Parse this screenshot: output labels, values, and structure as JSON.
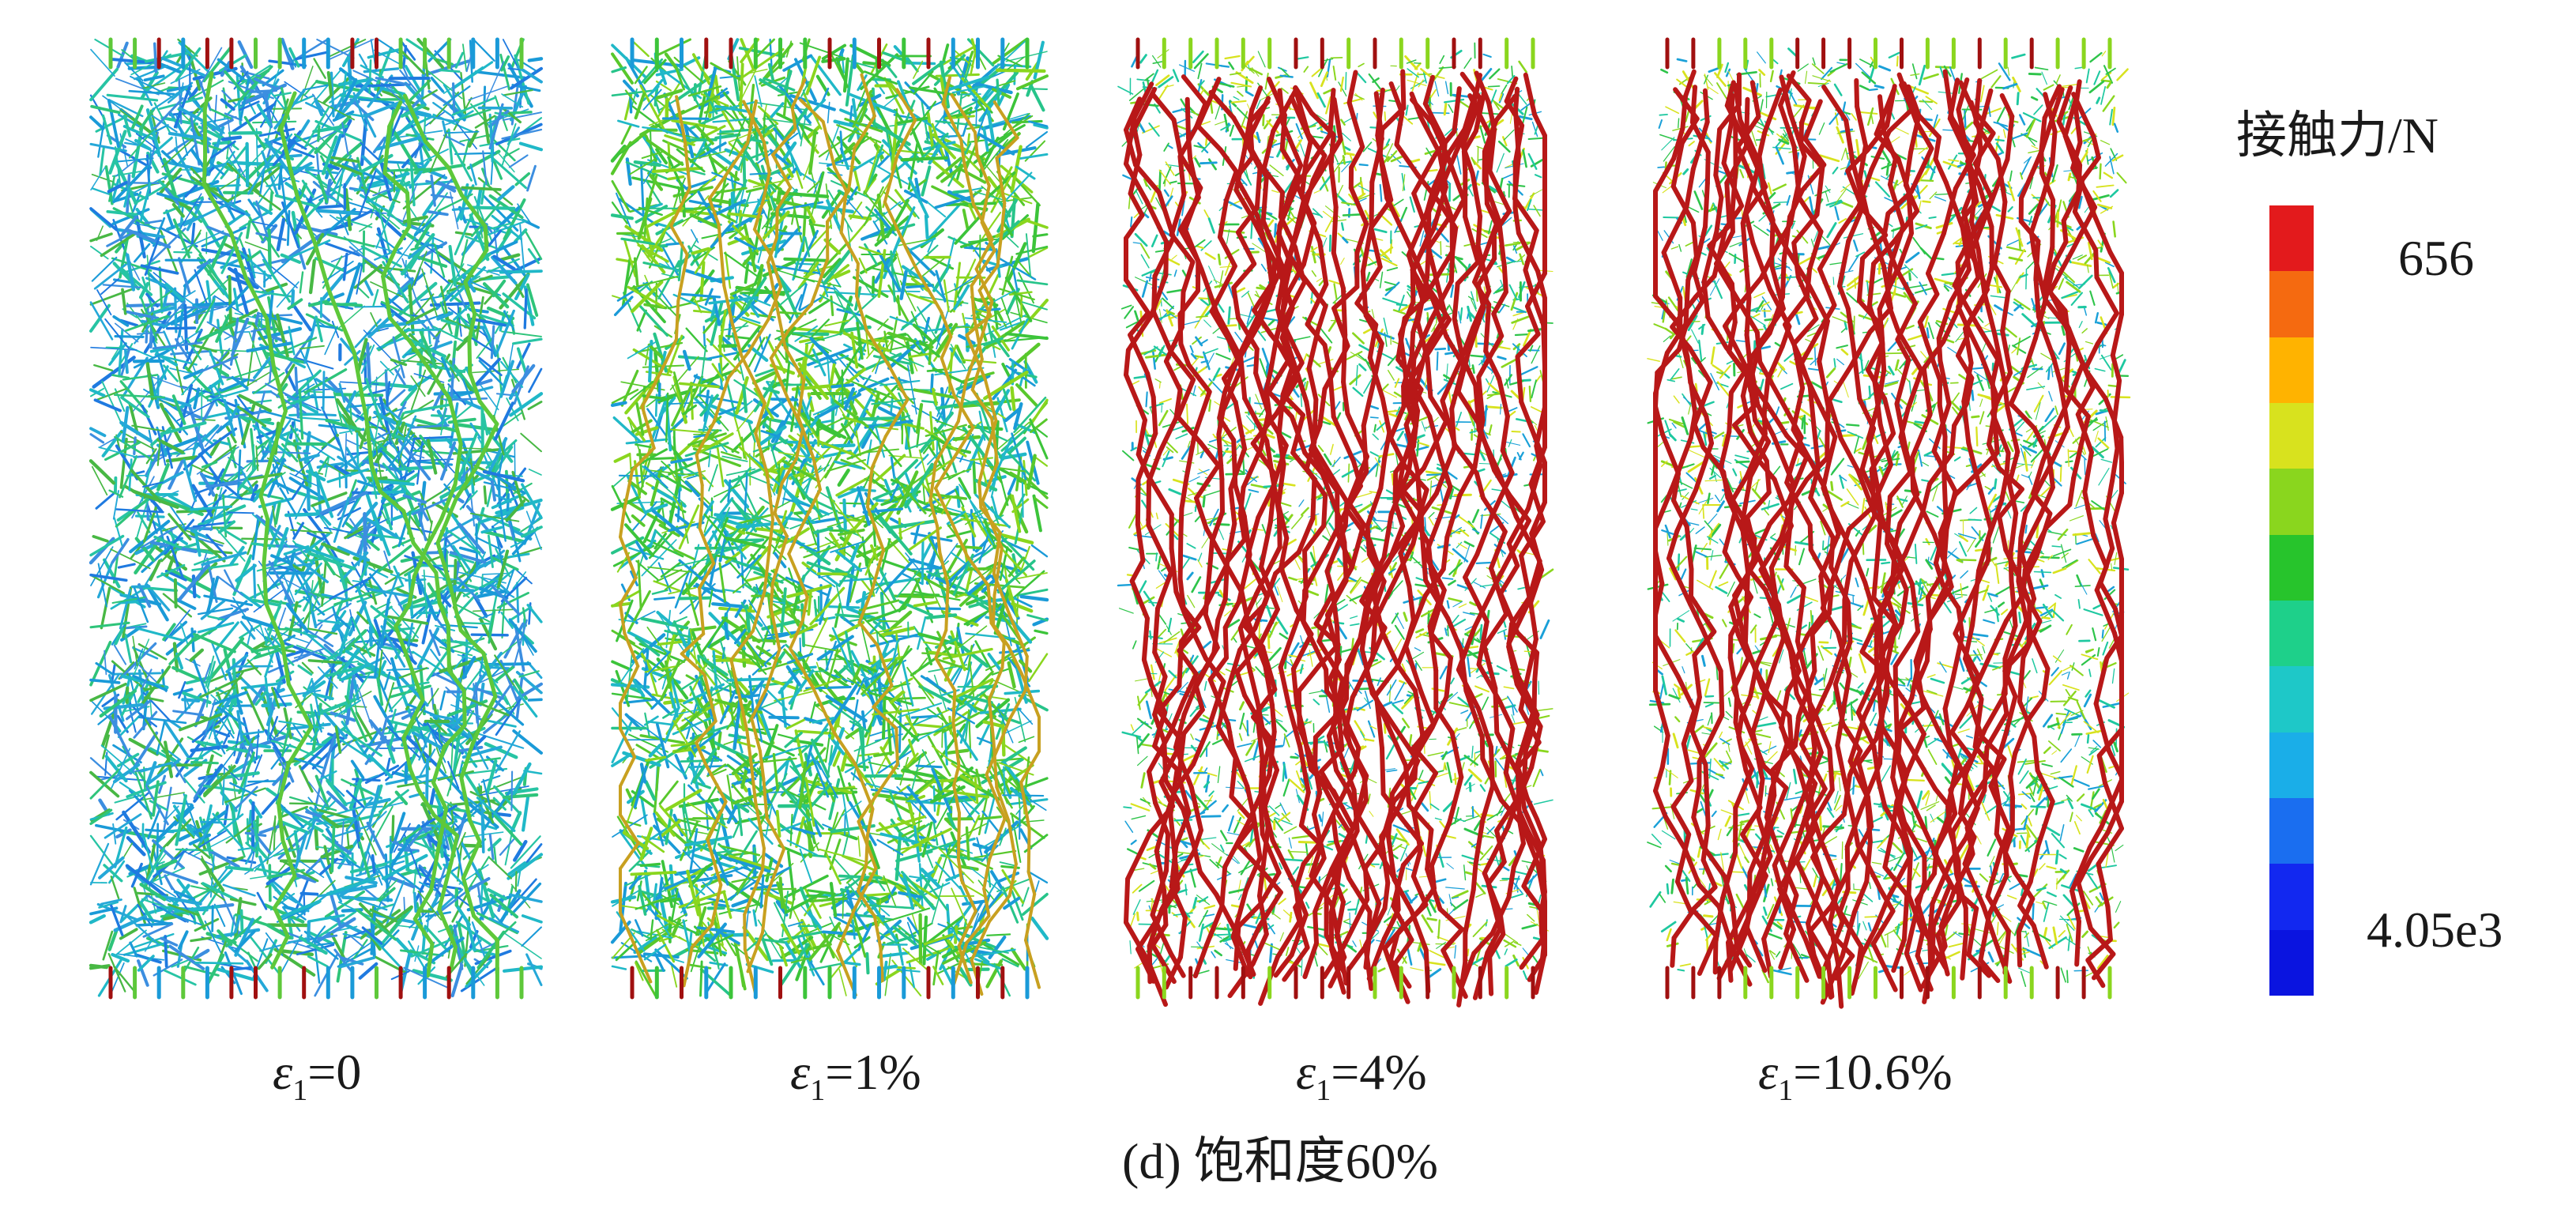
{
  "panels": [
    {
      "symbol": "ε",
      "subscript": "1",
      "value": "=0"
    },
    {
      "symbol": "ε",
      "subscript": "1",
      "value": "=1%"
    },
    {
      "symbol": "ε",
      "subscript": "1",
      "value": "=4%"
    },
    {
      "symbol": "ε",
      "subscript": "1",
      "value": "=10.6%"
    }
  ],
  "caption": "(d) 饱和度60%",
  "legend": {
    "title": "接触力/N",
    "max_label": "656",
    "min_label": "4.05e3",
    "colors": [
      "#e31a1c",
      "#f56a10",
      "#ffb300",
      "#d8e21e",
      "#8ad61e",
      "#27c42c",
      "#1ed08a",
      "#1ec8c8",
      "#1aaee8",
      "#1a6ef0",
      "#1228f0",
      "#0a14e0"
    ]
  }
}
